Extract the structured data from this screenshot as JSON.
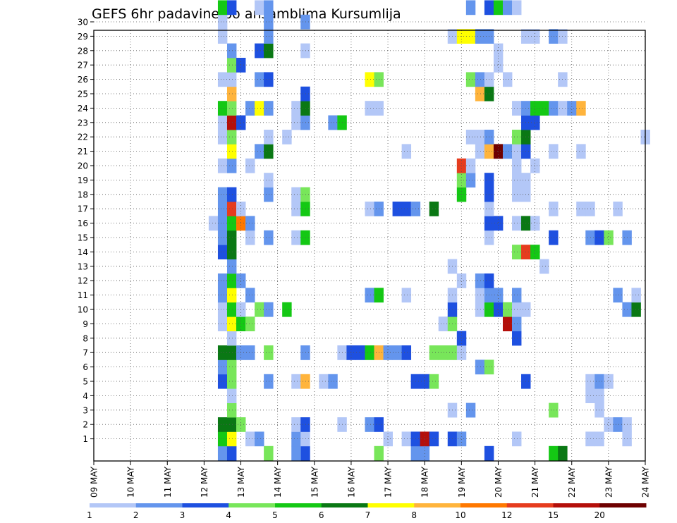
{
  "chart_data": {
    "type": "heatmap",
    "title": "GEFS 6hr padavine po ansamblima Kursumlija",
    "x_tick_labels": [
      "09 MAY",
      "10 MAY",
      "11 MAY",
      "12 MAY",
      "13 MAY",
      "14 MAY",
      "15 MAY",
      "16 MAY",
      "17 MAY",
      "18 MAY",
      "19 MAY",
      "20 MAY",
      "21 MAY",
      "22 MAY",
      "23 MAY",
      "24 MAY"
    ],
    "x_days": [
      9,
      10,
      11,
      12,
      13,
      14,
      15,
      16,
      17,
      18,
      19,
      20,
      21,
      22,
      23,
      24
    ],
    "y_tick_labels": [
      "1",
      "2",
      "3",
      "4",
      "5",
      "6",
      "7",
      "8",
      "9",
      "10",
      "11",
      "12",
      "13",
      "14",
      "15",
      "16",
      "17",
      "18",
      "19",
      "20",
      "21",
      "22",
      "23",
      "24",
      "25",
      "26",
      "27",
      "28",
      "29",
      "30"
    ],
    "xlim": [
      9,
      24
    ],
    "ylim": [
      0,
      30
    ],
    "grid": true,
    "colorbar": {
      "position": "bottom",
      "labels": [
        "1",
        "2",
        "3",
        "4",
        "5",
        "6",
        "7",
        "8",
        "10",
        "12",
        "15",
        "20"
      ],
      "colors": [
        "#b3c7f7",
        "#6495ed",
        "#1e50e0",
        "#78e65a",
        "#14c814",
        "#0a7814",
        "#ffff00",
        "#ffb43c",
        "#ff7800",
        "#e63c1e",
        "#b40f0a",
        "#6e0000"
      ]
    },
    "cells": [
      [
        12.5,
        0,
        2
      ],
      [
        12.75,
        0,
        3
      ],
      [
        13.75,
        0,
        4
      ],
      [
        14.75,
        0,
        3
      ],
      [
        14.5,
        0,
        2
      ],
      [
        16.75,
        0,
        4
      ],
      [
        17.75,
        0,
        2
      ],
      [
        18,
        0,
        2
      ],
      [
        19.75,
        0,
        3
      ],
      [
        21.5,
        0,
        5
      ],
      [
        21.75,
        0,
        6
      ],
      [
        12.5,
        1,
        5
      ],
      [
        12.75,
        1,
        7
      ],
      [
        13.25,
        1,
        1
      ],
      [
        13.5,
        1,
        2
      ],
      [
        14.5,
        1,
        2
      ],
      [
        14.75,
        1,
        1
      ],
      [
        17,
        1,
        1
      ],
      [
        17.5,
        1,
        1
      ],
      [
        17.75,
        1,
        3
      ],
      [
        18,
        1,
        11
      ],
      [
        18.25,
        1,
        3
      ],
      [
        18.75,
        1,
        3
      ],
      [
        19,
        1,
        2
      ],
      [
        20.5,
        1,
        1
      ],
      [
        22.5,
        1,
        1
      ],
      [
        22.75,
        1,
        1
      ],
      [
        23.5,
        1,
        1
      ],
      [
        12.5,
        2,
        6
      ],
      [
        12.75,
        2,
        6
      ],
      [
        13,
        2,
        4
      ],
      [
        14.5,
        2,
        1
      ],
      [
        14.75,
        2,
        3
      ],
      [
        15.75,
        2,
        1
      ],
      [
        16.5,
        2,
        2
      ],
      [
        16.75,
        2,
        3
      ],
      [
        23,
        2,
        1
      ],
      [
        23.25,
        2,
        2
      ],
      [
        23.5,
        2,
        1
      ],
      [
        12.75,
        3,
        4
      ],
      [
        18.75,
        3,
        1
      ],
      [
        19.25,
        3,
        2
      ],
      [
        21.5,
        3,
        4
      ],
      [
        22.75,
        3,
        1
      ],
      [
        12.75,
        4,
        1
      ],
      [
        22.5,
        4,
        1
      ],
      [
        22.75,
        4,
        1
      ],
      [
        12.5,
        5,
        3
      ],
      [
        12.75,
        5,
        4
      ],
      [
        13.75,
        5,
        2
      ],
      [
        14.5,
        5,
        1
      ],
      [
        14.75,
        5,
        8
      ],
      [
        15.25,
        5,
        1
      ],
      [
        15.5,
        5,
        2
      ],
      [
        17.75,
        5,
        3
      ],
      [
        18,
        5,
        3
      ],
      [
        18.25,
        5,
        4
      ],
      [
        20.75,
        5,
        3
      ],
      [
        22.5,
        5,
        1
      ],
      [
        22.75,
        5,
        2
      ],
      [
        23,
        5,
        1
      ],
      [
        12.5,
        6,
        2
      ],
      [
        12.75,
        6,
        4
      ],
      [
        19.5,
        6,
        2
      ],
      [
        19.75,
        6,
        4
      ],
      [
        12.5,
        7,
        6
      ],
      [
        12.75,
        7,
        6
      ],
      [
        13,
        7,
        2
      ],
      [
        13.25,
        7,
        2
      ],
      [
        13.75,
        7,
        4
      ],
      [
        14.75,
        7,
        2
      ],
      [
        15.75,
        7,
        1
      ],
      [
        16,
        7,
        3
      ],
      [
        16.25,
        7,
        3
      ],
      [
        16.5,
        7,
        5
      ],
      [
        16.75,
        7,
        8
      ],
      [
        17,
        7,
        2
      ],
      [
        17.25,
        7,
        2
      ],
      [
        17.5,
        7,
        3
      ],
      [
        18.25,
        7,
        4
      ],
      [
        18.5,
        7,
        4
      ],
      [
        18.75,
        7,
        4
      ],
      [
        19,
        7,
        1
      ],
      [
        12.75,
        8,
        1
      ],
      [
        19,
        8,
        3
      ],
      [
        20.5,
        8,
        3
      ],
      [
        12.5,
        9,
        1
      ],
      [
        12.75,
        9,
        7
      ],
      [
        13,
        9,
        5
      ],
      [
        13.25,
        9,
        4
      ],
      [
        18.5,
        9,
        1
      ],
      [
        18.75,
        9,
        4
      ],
      [
        20.25,
        9,
        11
      ],
      [
        20.5,
        9,
        2
      ],
      [
        12.5,
        10,
        1
      ],
      [
        12.75,
        10,
        5
      ],
      [
        13,
        10,
        1
      ],
      [
        13.5,
        10,
        4
      ],
      [
        13.75,
        10,
        2
      ],
      [
        14.25,
        10,
        5
      ],
      [
        18.75,
        10,
        3
      ],
      [
        19.5,
        10,
        1
      ],
      [
        19.75,
        10,
        5
      ],
      [
        20,
        10,
        3
      ],
      [
        20.25,
        10,
        4
      ],
      [
        20.5,
        10,
        1
      ],
      [
        20.75,
        10,
        1
      ],
      [
        23.5,
        10,
        2
      ],
      [
        23.75,
        10,
        6
      ],
      [
        12.5,
        11,
        2
      ],
      [
        12.75,
        11,
        7
      ],
      [
        13.25,
        11,
        2
      ],
      [
        16.5,
        11,
        2
      ],
      [
        16.75,
        11,
        5
      ],
      [
        17.5,
        11,
        1
      ],
      [
        18.75,
        11,
        1
      ],
      [
        19.5,
        11,
        1
      ],
      [
        19.75,
        11,
        2
      ],
      [
        20,
        11,
        2
      ],
      [
        20.5,
        11,
        2
      ],
      [
        23.25,
        11,
        2
      ],
      [
        23.75,
        11,
        1
      ],
      [
        12.5,
        12,
        2
      ],
      [
        12.75,
        12,
        5
      ],
      [
        13,
        12,
        2
      ],
      [
        19,
        12,
        1
      ],
      [
        19.5,
        12,
        2
      ],
      [
        19.75,
        12,
        3
      ],
      [
        12.75,
        13,
        2
      ],
      [
        18.75,
        13,
        1
      ],
      [
        21.25,
        13,
        1
      ],
      [
        12.5,
        14,
        3
      ],
      [
        12.75,
        14,
        6
      ],
      [
        20.5,
        14,
        4
      ],
      [
        20.75,
        14,
        10
      ],
      [
        21,
        14,
        5
      ],
      [
        12.5,
        15,
        2
      ],
      [
        12.75,
        15,
        6
      ],
      [
        13.25,
        15,
        1
      ],
      [
        13.75,
        15,
        2
      ],
      [
        14.5,
        15,
        1
      ],
      [
        14.75,
        15,
        5
      ],
      [
        19.75,
        15,
        1
      ],
      [
        21.5,
        15,
        3
      ],
      [
        22.5,
        15,
        2
      ],
      [
        22.75,
        15,
        3
      ],
      [
        23,
        15,
        4
      ],
      [
        23.5,
        15,
        2
      ],
      [
        12.25,
        16,
        1
      ],
      [
        12.5,
        16,
        2
      ],
      [
        12.75,
        16,
        5
      ],
      [
        13,
        16,
        9
      ],
      [
        13.25,
        16,
        2
      ],
      [
        19.75,
        16,
        3
      ],
      [
        20,
        16,
        3
      ],
      [
        20.5,
        16,
        1
      ],
      [
        20.75,
        16,
        6
      ],
      [
        21,
        16,
        1
      ],
      [
        12.5,
        17,
        2
      ],
      [
        12.75,
        17,
        10
      ],
      [
        13,
        17,
        1
      ],
      [
        14.5,
        17,
        1
      ],
      [
        14.75,
        17,
        5
      ],
      [
        16.5,
        17,
        1
      ],
      [
        16.75,
        17,
        2
      ],
      [
        17.25,
        17,
        3
      ],
      [
        17.5,
        17,
        3
      ],
      [
        17.75,
        17,
        2
      ],
      [
        18.25,
        17,
        6
      ],
      [
        19.75,
        17,
        1
      ],
      [
        21.5,
        17,
        1
      ],
      [
        22.25,
        17,
        1
      ],
      [
        22.5,
        17,
        1
      ],
      [
        23.25,
        17,
        1
      ],
      [
        12.5,
        18,
        2
      ],
      [
        12.75,
        18,
        3
      ],
      [
        13.75,
        18,
        2
      ],
      [
        14.5,
        18,
        1
      ],
      [
        14.75,
        18,
        4
      ],
      [
        19,
        18,
        5
      ],
      [
        19.75,
        18,
        3
      ],
      [
        20.5,
        18,
        1
      ],
      [
        20.75,
        18,
        1
      ],
      [
        13.75,
        19,
        1
      ],
      [
        19,
        19,
        4
      ],
      [
        19.25,
        19,
        2
      ],
      [
        19.75,
        19,
        3
      ],
      [
        20.5,
        19,
        1
      ],
      [
        20.75,
        19,
        1
      ],
      [
        12.5,
        20,
        1
      ],
      [
        12.75,
        20,
        2
      ],
      [
        13.25,
        20,
        1
      ],
      [
        19,
        20,
        10
      ],
      [
        19.25,
        20,
        1
      ],
      [
        20.5,
        20,
        1
      ],
      [
        21,
        20,
        1
      ],
      [
        12.75,
        21,
        7
      ],
      [
        13.5,
        21,
        2
      ],
      [
        13.75,
        21,
        6
      ],
      [
        17.5,
        21,
        1
      ],
      [
        19.5,
        21,
        1
      ],
      [
        19.75,
        21,
        8
      ],
      [
        20,
        21,
        12
      ],
      [
        20.25,
        21,
        2
      ],
      [
        20.5,
        21,
        1
      ],
      [
        20.75,
        21,
        3
      ],
      [
        21.5,
        21,
        1
      ],
      [
        22.25,
        21,
        1
      ],
      [
        12.5,
        22,
        1
      ],
      [
        12.75,
        22,
        4
      ],
      [
        13.75,
        22,
        1
      ],
      [
        14.25,
        22,
        1
      ],
      [
        19.25,
        22,
        1
      ],
      [
        19.5,
        22,
        1
      ],
      [
        19.75,
        22,
        2
      ],
      [
        20.5,
        22,
        4
      ],
      [
        20.75,
        22,
        6
      ],
      [
        24,
        22,
        1
      ],
      [
        12.5,
        23,
        1
      ],
      [
        12.75,
        23,
        11
      ],
      [
        13,
        23,
        3
      ],
      [
        14.5,
        23,
        1
      ],
      [
        14.75,
        23,
        2
      ],
      [
        15.5,
        23,
        2
      ],
      [
        15.75,
        23,
        5
      ],
      [
        20.75,
        23,
        3
      ],
      [
        21,
        23,
        3
      ],
      [
        12.5,
        24,
        5
      ],
      [
        12.75,
        24,
        4
      ],
      [
        13.25,
        24,
        2
      ],
      [
        13.5,
        24,
        7
      ],
      [
        13.75,
        24,
        2
      ],
      [
        14.5,
        24,
        1
      ],
      [
        14.75,
        24,
        6
      ],
      [
        16.5,
        24,
        1
      ],
      [
        16.75,
        24,
        1
      ],
      [
        20.5,
        24,
        1
      ],
      [
        20.75,
        24,
        2
      ],
      [
        21,
        24,
        5
      ],
      [
        21.25,
        24,
        5
      ],
      [
        21.5,
        24,
        2
      ],
      [
        21.75,
        24,
        1
      ],
      [
        22,
        24,
        2
      ],
      [
        22.25,
        24,
        8
      ],
      [
        12.75,
        25,
        8
      ],
      [
        14.75,
        25,
        3
      ],
      [
        19.5,
        25,
        8
      ],
      [
        19.75,
        25,
        6
      ],
      [
        12.5,
        26,
        1
      ],
      [
        12.75,
        26,
        1
      ],
      [
        13.5,
        26,
        2
      ],
      [
        13.75,
        26,
        3
      ],
      [
        16.5,
        26,
        7
      ],
      [
        16.75,
        26,
        4
      ],
      [
        19.25,
        26,
        4
      ],
      [
        19.5,
        26,
        2
      ],
      [
        19.75,
        26,
        1
      ],
      [
        20.25,
        26,
        1
      ],
      [
        21.75,
        26,
        1
      ],
      [
        12.75,
        27,
        4
      ],
      [
        13,
        27,
        3
      ],
      [
        20,
        27,
        1
      ],
      [
        12.75,
        28,
        2
      ],
      [
        13.5,
        28,
        3
      ],
      [
        13.75,
        28,
        6
      ],
      [
        14.75,
        28,
        1
      ],
      [
        20,
        28,
        1
      ],
      [
        12.5,
        29,
        1
      ],
      [
        13.75,
        29,
        2
      ],
      [
        18.75,
        29,
        1
      ],
      [
        19,
        29,
        7
      ],
      [
        19.25,
        29,
        7
      ],
      [
        19.5,
        29,
        2
      ],
      [
        19.75,
        29,
        2
      ],
      [
        20.75,
        29,
        1
      ],
      [
        21,
        29,
        1
      ],
      [
        21.5,
        29,
        2
      ],
      [
        21.75,
        29,
        1
      ],
      [
        12.5,
        30,
        1
      ],
      [
        13.75,
        30,
        2
      ],
      [
        14.75,
        30,
        2
      ],
      [
        12.5,
        31,
        5
      ],
      [
        12.75,
        31,
        3
      ],
      [
        13.5,
        31,
        1
      ],
      [
        13.75,
        31,
        2
      ],
      [
        19.25,
        31,
        2
      ],
      [
        19.75,
        31,
        3
      ],
      [
        20,
        31,
        5
      ],
      [
        20.25,
        31,
        2
      ],
      [
        20.5,
        31,
        1
      ]
    ]
  }
}
